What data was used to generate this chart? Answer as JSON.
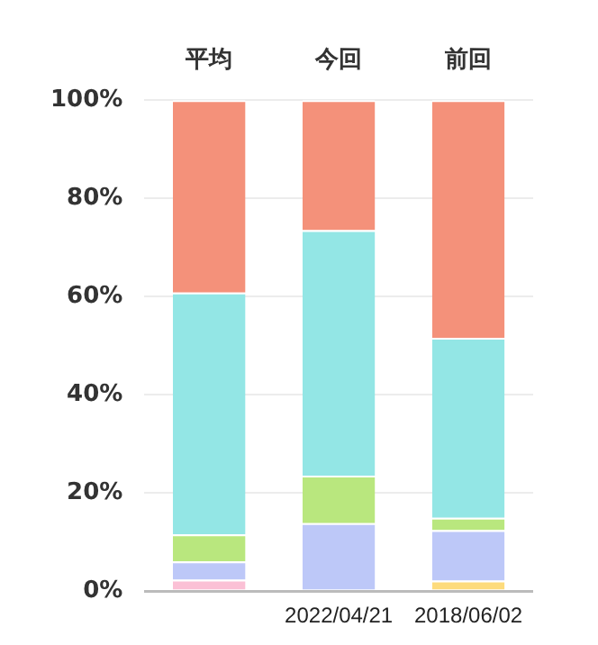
{
  "chart_data": {
    "type": "bar",
    "stacked": true,
    "categories": [
      "平均",
      "今回",
      "前回"
    ],
    "series": [
      {
        "color": "#fddb7c",
        "values": [
          null,
          null,
          2.1
        ]
      },
      {
        "color": "#fbc0d5",
        "values": [
          2.3,
          null,
          null
        ]
      },
      {
        "color": "#bdc8f8",
        "values": [
          3.7,
          13.8,
          10.3
        ]
      },
      {
        "color": "#b9e77e",
        "values": [
          5.5,
          9.7,
          2.5
        ]
      },
      {
        "color": "#93e6e5",
        "values": [
          49.3,
          50,
          36.7
        ]
      },
      {
        "color": "#f4917a",
        "values": [
          39.2,
          26.5,
          48.4
        ]
      }
    ],
    "ylim": [
      0,
      100
    ],
    "yticks": [
      {
        "value": 0,
        "label": "0%"
      },
      {
        "value": 20,
        "label": "20%"
      },
      {
        "value": 40,
        "label": "40%"
      },
      {
        "value": 60,
        "label": "60%"
      },
      {
        "value": 80,
        "label": "80%"
      },
      {
        "value": 100,
        "label": "100%"
      }
    ],
    "grid": "y",
    "legend": false,
    "annotations": [
      "2022/04/21",
      "2018/06/02"
    ]
  }
}
